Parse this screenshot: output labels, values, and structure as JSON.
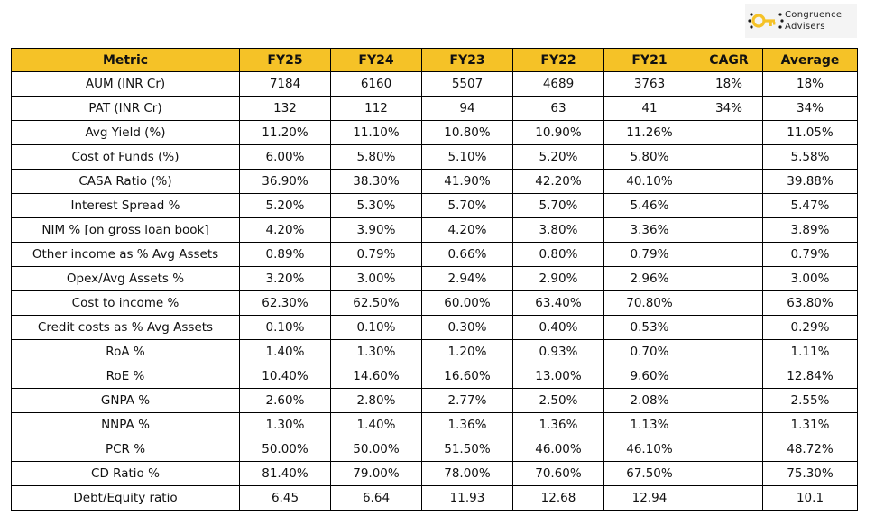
{
  "brand": {
    "name_line1": "Congruence",
    "name_line2": "Advisers",
    "logo_icon": "key-icon",
    "logo_color": "#f5c227"
  },
  "table": {
    "header_color": "#f5c227",
    "headers": [
      "Metric",
      "FY25",
      "FY24",
      "FY23",
      "FY22",
      "FY21",
      "CAGR",
      "Average"
    ],
    "rows": [
      [
        "AUM (INR Cr)",
        "7184",
        "6160",
        "5507",
        "4689",
        "3763",
        "18%",
        "18%"
      ],
      [
        "PAT (INR Cr)",
        "132",
        "112",
        "94",
        "63",
        "41",
        "34%",
        "34%"
      ],
      [
        "Avg Yield (%)",
        "11.20%",
        "11.10%",
        "10.80%",
        "10.90%",
        "11.26%",
        "",
        "11.05%"
      ],
      [
        "Cost of Funds (%)",
        "6.00%",
        "5.80%",
        "5.10%",
        "5.20%",
        "5.80%",
        "",
        "5.58%"
      ],
      [
        "CASA Ratio (%)",
        "36.90%",
        "38.30%",
        "41.90%",
        "42.20%",
        "40.10%",
        "",
        "39.88%"
      ],
      [
        "Interest Spread %",
        "5.20%",
        "5.30%",
        "5.70%",
        "5.70%",
        "5.46%",
        "",
        "5.47%"
      ],
      [
        "NIM % [on gross loan book]",
        "4.20%",
        "3.90%",
        "4.20%",
        "3.80%",
        "3.36%",
        "",
        "3.89%"
      ],
      [
        "Other income as % Avg Assets",
        "0.89%",
        "0.79%",
        "0.66%",
        "0.80%",
        "0.79%",
        "",
        "0.79%"
      ],
      [
        "Opex/Avg Assets %",
        "3.20%",
        "3.00%",
        "2.94%",
        "2.90%",
        "2.96%",
        "",
        "3.00%"
      ],
      [
        "Cost to income %",
        "62.30%",
        "62.50%",
        "60.00%",
        "63.40%",
        "70.80%",
        "",
        "63.80%"
      ],
      [
        "Credit costs as % Avg Assets",
        "0.10%",
        "0.10%",
        "0.30%",
        "0.40%",
        "0.53%",
        "",
        "0.29%"
      ],
      [
        "RoA %",
        "1.40%",
        "1.30%",
        "1.20%",
        "0.93%",
        "0.70%",
        "",
        "1.11%"
      ],
      [
        "RoE %",
        "10.40%",
        "14.60%",
        "16.60%",
        "13.00%",
        "9.60%",
        "",
        "12.84%"
      ],
      [
        "GNPA %",
        "2.60%",
        "2.80%",
        "2.77%",
        "2.50%",
        "2.08%",
        "",
        "2.55%"
      ],
      [
        "NNPA %",
        "1.30%",
        "1.40%",
        "1.36%",
        "1.36%",
        "1.13%",
        "",
        "1.31%"
      ],
      [
        "PCR %",
        "50.00%",
        "50.00%",
        "51.50%",
        "46.00%",
        "46.10%",
        "",
        "48.72%"
      ],
      [
        "CD Ratio %",
        "81.40%",
        "79.00%",
        "78.00%",
        "70.60%",
        "67.50%",
        "",
        "75.30%"
      ],
      [
        "Debt/Equity ratio",
        "6.45",
        "6.64",
        "11.93",
        "12.68",
        "12.94",
        "",
        "10.1"
      ]
    ]
  }
}
